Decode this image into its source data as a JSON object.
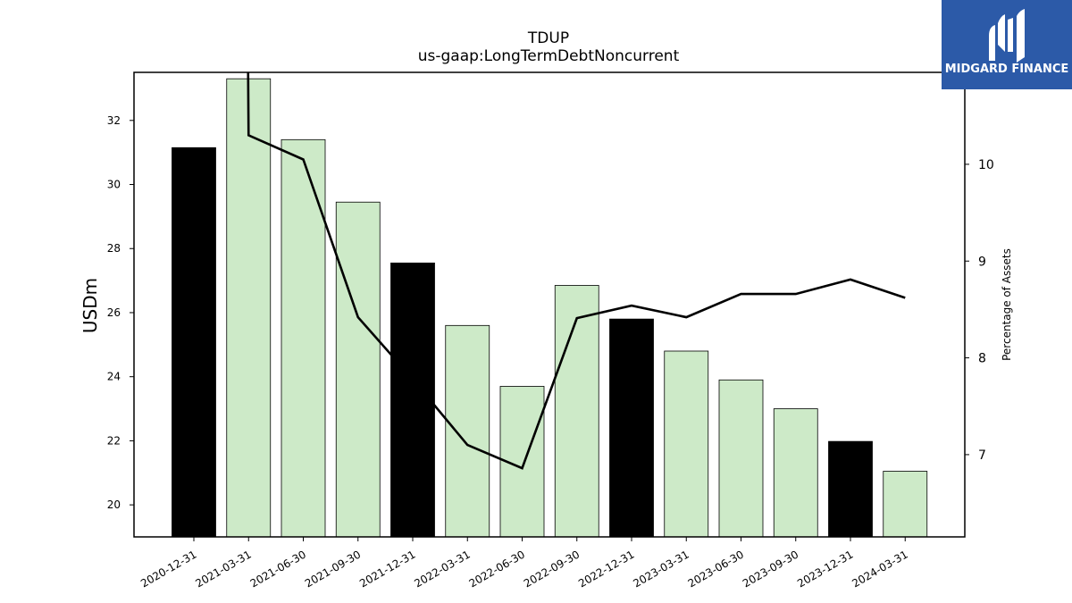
{
  "logo": {
    "text": "MIDGARD FINANCE",
    "bg_color": "#2c5aa8",
    "icon": "midgard-finance-logo-icon"
  },
  "colors": {
    "highlight_bar": "#000000",
    "normal_bar": "#cdeac8",
    "bar_edge": "#000000",
    "line": "#000000"
  },
  "chart_data": {
    "type": "bar",
    "title": "TDUP",
    "subtitle": "us-gaap:LongTermDebtNoncurrent",
    "ylabel": "USDm",
    "y2label": "Percentage of Assets",
    "ylim": [
      19,
      33.5
    ],
    "yticks": [
      20,
      22,
      24,
      26,
      28,
      30,
      32
    ],
    "y2lim": [
      6.15,
      10.95
    ],
    "y2ticks": [
      7,
      8,
      9,
      10
    ],
    "categories": [
      "2020-12-31",
      "2021-03-31",
      "2021-06-30",
      "2021-09-30",
      "2021-12-31",
      "2022-03-31",
      "2022-06-30",
      "2022-09-30",
      "2022-12-31",
      "2023-03-31",
      "2023-06-30",
      "2023-09-30",
      "2023-12-31",
      "2024-03-31"
    ],
    "highlighted": [
      true,
      false,
      false,
      false,
      true,
      false,
      false,
      false,
      true,
      false,
      false,
      false,
      true,
      false
    ],
    "series": [
      {
        "kind": "bar",
        "axis": "left",
        "values": [
          31.15,
          33.3,
          31.4,
          29.45,
          27.55,
          25.6,
          23.7,
          26.85,
          25.8,
          24.8,
          23.9,
          23.0,
          21.98,
          21.05
        ]
      },
      {
        "kind": "line",
        "axis": "right",
        "values": [
          null,
          10.3,
          10.05,
          8.42,
          7.78,
          7.1,
          6.86,
          8.41,
          8.54,
          8.42,
          8.66,
          8.66,
          8.81,
          8.62
        ],
        "start_value": 12.9
      }
    ],
    "grid": false,
    "legend": "none"
  }
}
